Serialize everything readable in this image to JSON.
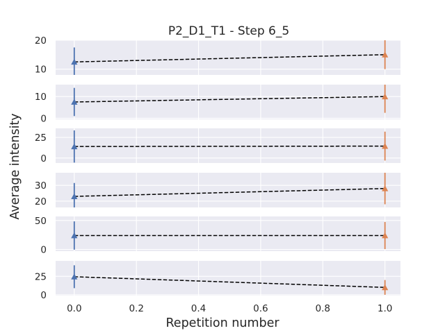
{
  "chart_data": {
    "type": "line",
    "title": "P2_D1_T1 - Step 6_5",
    "xlabel": "Repetition number",
    "ylabel": "Average intensity",
    "xlim": [
      -0.06,
      1.05
    ],
    "x_ticks": [
      0.0,
      0.2,
      0.4,
      0.6,
      0.8,
      1.0
    ],
    "x_tick_labels": [
      "0.0",
      "0.2",
      "0.4",
      "0.6",
      "0.8",
      "1.0"
    ],
    "grid": true,
    "style": "seaborn-darkgrid",
    "colors": {
      "point_0": "#4c72b0",
      "point_1": "#dd8452",
      "trend": "#000000",
      "panel_bg": "#eaeaf2",
      "grid": "#ffffff"
    },
    "panels": [
      {
        "ylim": [
          8,
          20
        ],
        "yticks": [
          10,
          20
        ],
        "ytick_labels": [
          "10",
          "20"
        ],
        "points": [
          {
            "x": 0,
            "y": 12.5,
            "err": 5.0
          },
          {
            "x": 1,
            "y": 15.0,
            "err": 5.0
          }
        ]
      },
      {
        "ylim": [
          -0.5,
          15.5
        ],
        "yticks": [
          0,
          10
        ],
        "ytick_labels": [
          "0",
          "10"
        ],
        "points": [
          {
            "x": 0,
            "y": 7.5,
            "err": 6.5
          },
          {
            "x": 1,
            "y": 10.0,
            "err": 7.5
          }
        ]
      },
      {
        "ylim": [
          -6,
          36
        ],
        "yticks": [
          0,
          25
        ],
        "ytick_labels": [
          "0",
          "25"
        ],
        "points": [
          {
            "x": 0,
            "y": 14.0,
            "err": 19.5
          },
          {
            "x": 1,
            "y": 14.5,
            "err": 17.5
          }
        ]
      },
      {
        "ylim": [
          16,
          38
        ],
        "yticks": [
          20,
          30
        ],
        "ytick_labels": [
          "20",
          "30"
        ],
        "points": [
          {
            "x": 0,
            "y": 23.0,
            "err": 8.5
          },
          {
            "x": 1,
            "y": 28.0,
            "err": 10.0
          }
        ]
      },
      {
        "ylim": [
          -3,
          57
        ],
        "yticks": [
          0,
          50
        ],
        "ytick_labels": [
          "0",
          "50"
        ],
        "points": [
          {
            "x": 0,
            "y": 24.0,
            "err": 24.5
          },
          {
            "x": 1,
            "y": 24.0,
            "err": 23.5
          }
        ]
      },
      {
        "ylim": [
          -1,
          46
        ],
        "yticks": [
          0,
          25
        ],
        "ytick_labels": [
          "0",
          "25"
        ],
        "points": [
          {
            "x": 0,
            "y": 24.5,
            "err": 15.5
          },
          {
            "x": 1,
            "y": 10.0,
            "err": 10.0
          }
        ]
      }
    ]
  }
}
